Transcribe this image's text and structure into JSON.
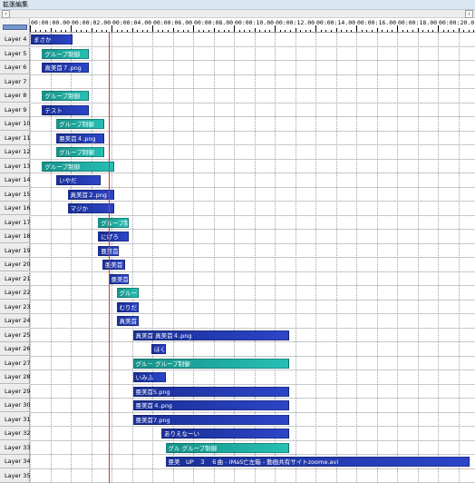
{
  "window": {
    "title": "拡張編集"
  },
  "scroll": {
    "left_icon": "scroll-left-icon",
    "right_icon": "scroll-right-icon"
  },
  "ruler": {
    "ticks": [
      "00:00:00.00",
      "00:00:02.00",
      "00:00:04.00",
      "00:00:06.00",
      "00:00:08.00",
      "00:00:10.00",
      "00:00:12.00",
      "00:00:14.00",
      "00:00:16.00",
      "00:00:18.00",
      "00:00:20.0"
    ]
  },
  "layers": [
    "Layer 4",
    "Layer 5",
    "Layer 6",
    "Layer 7",
    "Layer 8",
    "Layer 9",
    "Layer 10",
    "Layer 11",
    "Layer 12",
    "Layer 13",
    "Layer 14",
    "Layer 15",
    "Layer 16",
    "Layer 17",
    "Layer 18",
    "Layer 19",
    "Layer 20",
    "Layer 21",
    "Layer 22",
    "Layer 23",
    "Layer 24",
    "Layer 25",
    "Layer 26",
    "Layer 27",
    "Layer 28",
    "Layer 29",
    "Layer 30",
    "Layer 31",
    "Layer 32",
    "Layer 33",
    "Layer 34",
    "Layer 35"
  ],
  "colors": {
    "blue": "#1f37aa",
    "teal": "#1fa99f",
    "cursor": "#e03030"
  },
  "objects": [
    {
      "layer": 0,
      "start": 0.0,
      "end": 2.05,
      "label": "まさか",
      "color": "blue"
    },
    {
      "layer": 1,
      "start": 0.55,
      "end": 2.85,
      "label": "グループ制御",
      "color": "teal"
    },
    {
      "layer": 2,
      "start": 0.55,
      "end": 2.85,
      "label": "真美首７.png",
      "color": "blue"
    },
    {
      "layer": 4,
      "start": 0.55,
      "end": 2.85,
      "label": "グループ制御",
      "color": "teal"
    },
    {
      "layer": 5,
      "start": 0.55,
      "end": 2.85,
      "label": "テスト",
      "color": "blue"
    },
    {
      "layer": 6,
      "start": 1.25,
      "end": 3.6,
      "label": "グループ制御",
      "color": "teal"
    },
    {
      "layer": 7,
      "start": 1.25,
      "end": 3.6,
      "label": "亜美首４.png",
      "color": "blue"
    },
    {
      "layer": 8,
      "start": 1.25,
      "end": 3.6,
      "label": "グループ制御",
      "color": "teal"
    },
    {
      "layer": 9,
      "start": 0.55,
      "end": 4.1,
      "label": "グループ制御",
      "color": "teal"
    },
    {
      "layer": 10,
      "start": 1.25,
      "end": 3.4,
      "label": "いやだ",
      "color": "blue"
    },
    {
      "layer": 11,
      "start": 1.8,
      "end": 4.1,
      "label": "真美首２.png",
      "color": "blue"
    },
    {
      "layer": 12,
      "start": 1.8,
      "end": 4.1,
      "label": "マジか",
      "color": "blue"
    },
    {
      "layer": 13,
      "start": 3.3,
      "end": 4.8,
      "label": "グループ制御",
      "color": "teal"
    },
    {
      "layer": 14,
      "start": 3.3,
      "end": 4.8,
      "label": "にげろ",
      "color": "blue"
    },
    {
      "layer": 15,
      "start": 3.3,
      "end": 4.3,
      "label": "亜美首",
      "color": "blue"
    },
    {
      "layer": 16,
      "start": 3.5,
      "end": 4.6,
      "label": "亜美首",
      "color": "blue"
    },
    {
      "layer": 17,
      "start": 3.8,
      "end": 4.8,
      "label": "亜美首",
      "color": "blue"
    },
    {
      "layer": 18,
      "start": 4.2,
      "end": 5.3,
      "label": "グループ",
      "color": "teal"
    },
    {
      "layer": 19,
      "start": 4.2,
      "end": 5.3,
      "label": "むりだ",
      "color": "blue"
    },
    {
      "layer": 20,
      "start": 4.2,
      "end": 5.3,
      "label": "真美首",
      "color": "blue"
    },
    {
      "layer": 21,
      "start": 5.0,
      "end": 12.65,
      "label": "真美首 真美首４.png",
      "color": "blue"
    },
    {
      "layer": 22,
      "start": 5.9,
      "end": 6.6,
      "label": "ほく",
      "color": "blue"
    },
    {
      "layer": 23,
      "start": 5.0,
      "end": 12.65,
      "label": "グル－ グループ制御",
      "color": "teal"
    },
    {
      "layer": 24,
      "start": 5.0,
      "end": 6.6,
      "label": "いみふ",
      "color": "blue"
    },
    {
      "layer": 25,
      "start": 5.0,
      "end": 12.65,
      "label": "亜美首5.png",
      "color": "blue"
    },
    {
      "layer": 26,
      "start": 5.0,
      "end": 12.65,
      "label": "亜美首４.png",
      "color": "blue"
    },
    {
      "layer": 27,
      "start": 5.0,
      "end": 12.65,
      "label": "亜美首7.png",
      "color": "blue"
    },
    {
      "layer": 28,
      "start": 6.4,
      "end": 12.65,
      "label": "ありえなーい",
      "color": "blue"
    },
    {
      "layer": 29,
      "start": 6.6,
      "end": 12.65,
      "label": "グル グループ制御",
      "color": "teal"
    },
    {
      "layer": 30,
      "start": 6.6,
      "end": 21.5,
      "label": "亜美　UP　３　６曲 - IMaS亡左箱 - 動画共有サイトzoome.avi",
      "color": "blue"
    }
  ]
}
